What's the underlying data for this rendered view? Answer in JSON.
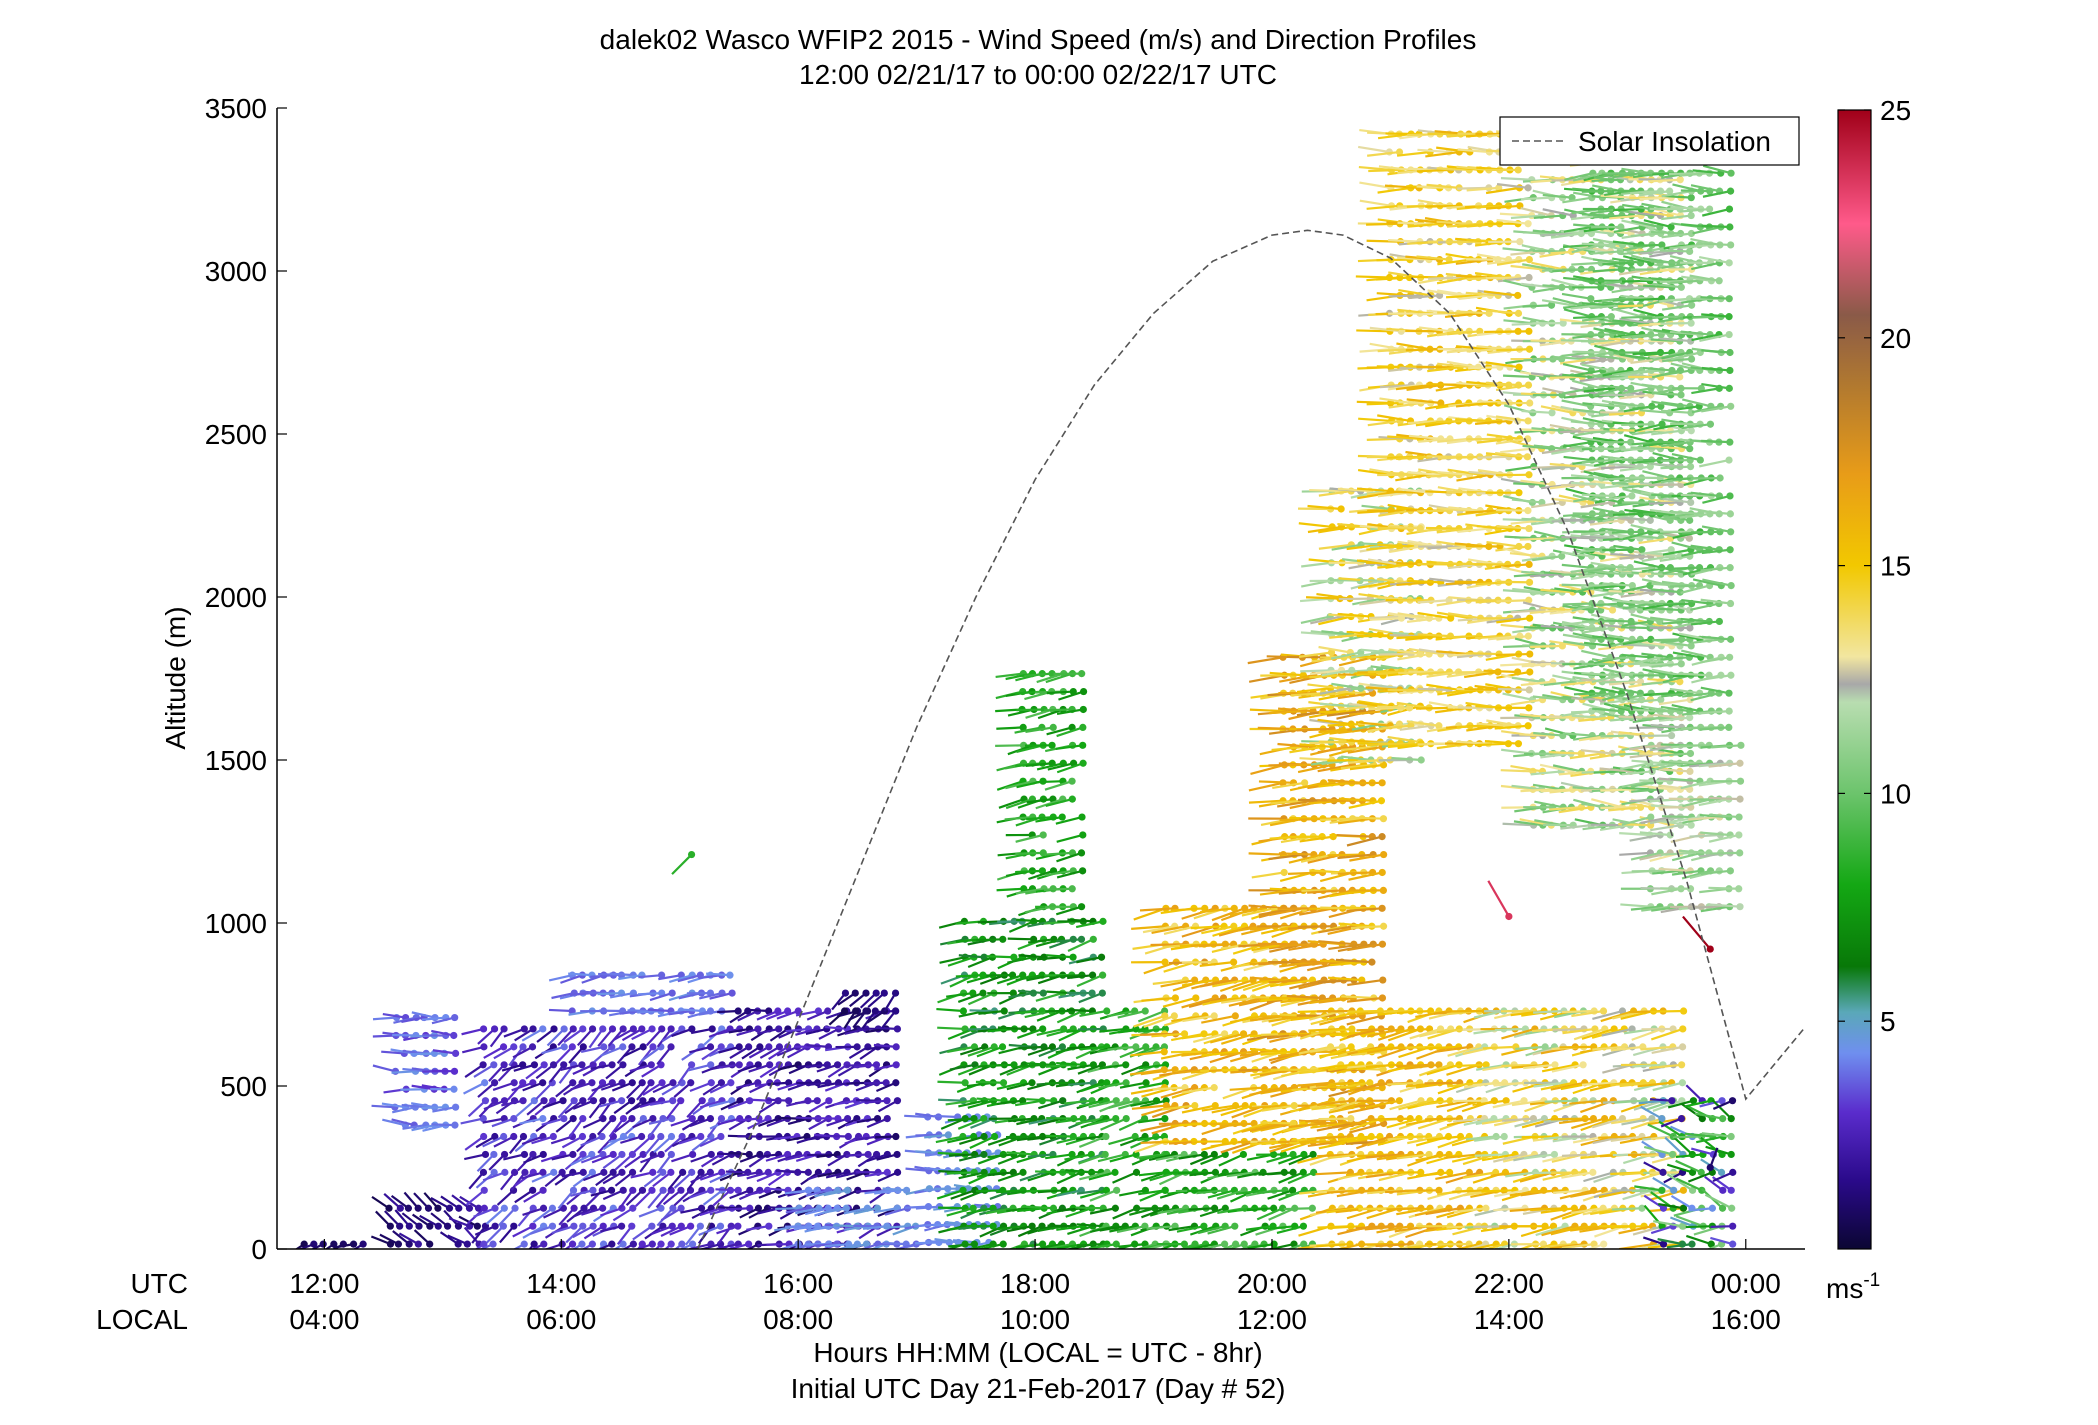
{
  "chart_data": {
    "type": "scatter",
    "title": "dalek02 Wasco WFIP2 2015 - Wind Speed (m/s) and Direction Profiles",
    "subtitle": "12:00 02/21/17 to 00:00 02/22/17  UTC",
    "xlabel": "Hours HH:MM  (LOCAL = UTC - 8hr)",
    "xlabel2": "Initial UTC Day 21-Feb-2017 (Day # 52)",
    "ylabel": "Altitude (m)",
    "row_label_utc": "UTC",
    "row_label_local": "LOCAL",
    "xlim_hours": [
      11.6,
      24.5
    ],
    "ylim": [
      0,
      3500
    ],
    "x_ticks_hours": [
      12,
      14,
      16,
      18,
      20,
      22,
      24
    ],
    "x_tick_labels_utc": [
      "12:00",
      "14:00",
      "16:00",
      "18:00",
      "20:00",
      "22:00",
      "00:00"
    ],
    "x_tick_labels_local": [
      "04:00",
      "06:00",
      "08:00",
      "10:00",
      "12:00",
      "14:00",
      "16:00"
    ],
    "y_ticks": [
      0,
      500,
      1000,
      1500,
      2000,
      2500,
      3000,
      3500
    ],
    "y_tick_labels": [
      "0",
      "500",
      "1000",
      "1500",
      "2000",
      "2500",
      "3000",
      "3500"
    ],
    "legend": {
      "label": "Solar Insolation",
      "placement": "top-right"
    },
    "colorbar": {
      "unit": "ms",
      "unit_sup": "-1",
      "range": [
        0,
        25
      ],
      "ticks": [
        5,
        10,
        15,
        20,
        25
      ],
      "tick_labels": [
        "5",
        "10",
        "15",
        "20",
        "25"
      ],
      "stops": [
        {
          "v": 0,
          "c": "#0b0633"
        },
        {
          "v": 1.5,
          "c": "#2a0a8a"
        },
        {
          "v": 3,
          "c": "#5a2ccc"
        },
        {
          "v": 4.3,
          "c": "#6f8fef"
        },
        {
          "v": 5.2,
          "c": "#5aa8b8"
        },
        {
          "v": 6.2,
          "c": "#087808"
        },
        {
          "v": 8,
          "c": "#14a814"
        },
        {
          "v": 10,
          "c": "#6cc46c"
        },
        {
          "v": 12,
          "c": "#b8ddb0"
        },
        {
          "v": 12.4,
          "c": "#a8a8a8"
        },
        {
          "v": 13,
          "c": "#f2e6a0"
        },
        {
          "v": 15,
          "c": "#f2c800"
        },
        {
          "v": 17,
          "c": "#e89c18"
        },
        {
          "v": 19,
          "c": "#b07830"
        },
        {
          "v": 20.5,
          "c": "#8a5a48"
        },
        {
          "v": 22.5,
          "c": "#ff5a8a"
        },
        {
          "v": 25,
          "c": "#a00018"
        }
      ]
    },
    "solar_insolation_curve": {
      "series_name": "Solar Insolation",
      "x_hours": [
        15.15,
        15.6,
        16.0,
        16.5,
        17.0,
        17.5,
        18.0,
        18.5,
        19.0,
        19.5,
        20.0,
        20.3,
        20.6,
        21.0,
        21.5,
        22.0,
        22.5,
        23.0,
        23.5,
        24.0,
        24.5
      ],
      "y_m": [
        0,
        350,
        700,
        1150,
        1600,
        2000,
        2360,
        2650,
        2870,
        3030,
        3110,
        3125,
        3110,
        3040,
        2870,
        2590,
        2200,
        1700,
        1130,
        460,
        680
      ]
    },
    "wind_profile_regions": [
      {
        "x0": 11.75,
        "x1": 12.35,
        "z0": 15,
        "z1": 50,
        "speed": [
          0.3,
          1.2
        ],
        "dir": [
          230,
          260
        ]
      },
      {
        "x0": 12.55,
        "x1": 13.3,
        "z0": 15,
        "z1": 160,
        "speed": [
          0.5,
          2.2
        ],
        "dir": [
          290,
          320
        ]
      },
      {
        "x0": 12.6,
        "x1": 13.1,
        "z0": 380,
        "z1": 720,
        "speed": [
          3.0,
          4.5
        ],
        "dir": [
          255,
          285
        ]
      },
      {
        "x0": 13.35,
        "x1": 15.5,
        "z0": 15,
        "z1": 720,
        "speed": [
          1.5,
          4.2
        ],
        "dir": [
          215,
          260
        ]
      },
      {
        "x0": 14.1,
        "x1": 15.45,
        "z0": 730,
        "z1": 850,
        "speed": [
          3.5,
          4.5
        ],
        "dir": [
          250,
          275
        ]
      },
      {
        "x0": 15.5,
        "x1": 16.85,
        "z0": 15,
        "z1": 780,
        "speed": [
          0.8,
          3.2
        ],
        "dir": [
          235,
          275
        ]
      },
      {
        "x0": 16.4,
        "x1": 16.85,
        "z0": 730,
        "z1": 820,
        "speed": [
          0.3,
          1.5
        ],
        "dir": [
          210,
          245
        ]
      },
      {
        "x0": 16.0,
        "x1": 17.0,
        "z0": 15,
        "z1": 200,
        "speed": [
          3.5,
          4.8
        ],
        "dir": [
          250,
          275
        ]
      },
      {
        "x0": 17.1,
        "x1": 17.7,
        "z0": 20,
        "z1": 420,
        "speed": [
          3.8,
          4.8
        ],
        "dir": [
          255,
          280
        ]
      },
      {
        "x0": 17.4,
        "x1": 18.6,
        "z0": 15,
        "z1": 1050,
        "speed": [
          5.5,
          8.8
        ],
        "dir": [
          245,
          275
        ]
      },
      {
        "x0": 17.9,
        "x1": 18.4,
        "z0": 1050,
        "z1": 1780,
        "speed": [
          7.0,
          9.5
        ],
        "dir": [
          250,
          270
        ]
      },
      {
        "x0": 18.6,
        "x1": 19.1,
        "z0": 15,
        "z1": 760,
        "speed": [
          6.5,
          9.8
        ],
        "dir": [
          245,
          265
        ]
      },
      {
        "x0": 19.1,
        "x1": 20.4,
        "z0": 15,
        "z1": 320,
        "speed": [
          6.5,
          9.8
        ],
        "dir": [
          245,
          270
        ]
      },
      {
        "x0": 19.1,
        "x1": 20.4,
        "z0": 330,
        "z1": 1080,
        "speed": [
          13.5,
          17.5
        ],
        "dir": [
          250,
          270
        ]
      },
      {
        "x0": 20.1,
        "x1": 20.95,
        "z0": 330,
        "z1": 1850,
        "speed": [
          14.0,
          18.0
        ],
        "dir": [
          255,
          275
        ]
      },
      {
        "x0": 20.5,
        "x1": 21.8,
        "z0": 15,
        "z1": 780,
        "speed": [
          13.5,
          17.0
        ],
        "dir": [
          250,
          270
        ]
      },
      {
        "x0": 20.5,
        "x1": 21.3,
        "z0": 1500,
        "z1": 2350,
        "speed": [
          10.5,
          15.5
        ],
        "dir": [
          255,
          280
        ]
      },
      {
        "x0": 21.0,
        "x1": 22.2,
        "z0": 1550,
        "z1": 3460,
        "speed": [
          12.5,
          16.0
        ],
        "dir": [
          260,
          280
        ]
      },
      {
        "x0": 21.8,
        "x1": 23.5,
        "z0": 15,
        "z1": 760,
        "speed": [
          11.0,
          16.5
        ],
        "dir": [
          250,
          270
        ]
      },
      {
        "x0": 22.2,
        "x1": 23.6,
        "z0": 1300,
        "z1": 3460,
        "speed": [
          9.5,
          14.0
        ],
        "dir": [
          260,
          285
        ]
      },
      {
        "x0": 22.7,
        "x1": 23.9,
        "z0": 1650,
        "z1": 3460,
        "speed": [
          8.8,
          11.8
        ],
        "dir": [
          255,
          285
        ]
      },
      {
        "x0": 23.2,
        "x1": 23.95,
        "z0": 1050,
        "z1": 1650,
        "speed": [
          10.0,
          13.0
        ],
        "dir": [
          255,
          275
        ]
      },
      {
        "x0": 23.3,
        "x1": 23.95,
        "z0": 15,
        "z1": 500,
        "speed": [
          0.8,
          11.0
        ],
        "dir": [
          240,
          320
        ]
      }
    ],
    "notable_points": [
      {
        "x": 15.1,
        "z": 1210,
        "speed": 8.5,
        "dir": 225
      },
      {
        "x": 22.0,
        "z": 1020,
        "speed": 23.5,
        "dir": 330
      },
      {
        "x": 23.7,
        "z": 920,
        "speed": 25.0,
        "dir": 320
      },
      {
        "x": 23.7,
        "z": 250,
        "speed": 1.0,
        "dir": 20
      }
    ]
  }
}
